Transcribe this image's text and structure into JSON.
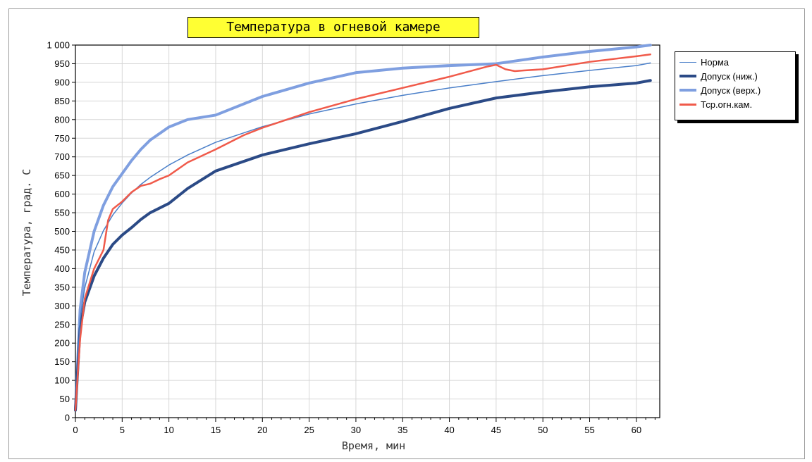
{
  "chart_data": {
    "type": "line",
    "title": "Температура в огневой камере",
    "xlabel": "Время, мин",
    "ylabel": "Температура, град. С",
    "xlim": [
      0,
      62.5
    ],
    "ylim": [
      0,
      1000
    ],
    "x_ticks": [
      0,
      5,
      10,
      15,
      20,
      25,
      30,
      35,
      40,
      45,
      50,
      55,
      60
    ],
    "y_ticks": [
      0,
      50,
      100,
      150,
      200,
      250,
      300,
      350,
      400,
      450,
      500,
      550,
      600,
      650,
      700,
      750,
      800,
      850,
      900,
      950,
      1000
    ],
    "y_tick_labels": [
      "0",
      "50",
      "100",
      "150",
      "200",
      "250",
      "300",
      "350",
      "400",
      "450",
      "500",
      "550",
      "600",
      "650",
      "700",
      "750",
      "800",
      "850",
      "900",
      "950",
      "1 000"
    ],
    "grid": true,
    "legend_position": "right",
    "series": [
      {
        "name": "Норма",
        "color": "#4a7fc9",
        "x": [
          0,
          0.5,
          1,
          2,
          3,
          4,
          5,
          6,
          7,
          8,
          10,
          12,
          15,
          20,
          25,
          30,
          35,
          40,
          45,
          50,
          55,
          60,
          61.5
        ],
        "y": [
          20,
          265,
          349,
          445,
          502,
          544,
          576,
          603,
          626,
          645,
          678,
          705,
          739,
          781,
          815,
          842,
          865,
          885,
          902,
          918,
          932,
          945,
          952
        ]
      },
      {
        "name": "Допуск (ниж.)",
        "color": "#2b4a86",
        "x": [
          0,
          0.5,
          1,
          2,
          3,
          4,
          5,
          6,
          7,
          8,
          10,
          12,
          15,
          20,
          25,
          30,
          35,
          40,
          45,
          50,
          55,
          60,
          61.5
        ],
        "y": [
          20,
          240,
          310,
          380,
          428,
          465,
          490,
          510,
          532,
          550,
          575,
          615,
          662,
          705,
          735,
          762,
          795,
          830,
          858,
          874,
          888,
          898,
          905
        ]
      },
      {
        "name": "Допуск (верх.)",
        "color": "#7f9fe0",
        "x": [
          0,
          0.5,
          1,
          2,
          3,
          4,
          5,
          6,
          7,
          8,
          10,
          12,
          15,
          20,
          25,
          30,
          35,
          40,
          45,
          50,
          55,
          60,
          61.5
        ],
        "y": [
          20,
          290,
          390,
          500,
          570,
          620,
          655,
          690,
          720,
          745,
          780,
          800,
          812,
          862,
          898,
          926,
          938,
          945,
          950,
          968,
          983,
          995,
          1000
        ]
      },
      {
        "name": "Тср.огн.кам.",
        "color": "#f05a4a",
        "x": [
          0,
          0.5,
          1,
          2,
          3,
          3.5,
          4,
          5,
          6,
          7,
          8,
          9,
          10,
          12,
          15,
          18,
          20,
          25,
          30,
          35,
          40,
          44,
          45,
          46,
          47,
          48,
          50,
          55,
          60,
          61.5
        ],
        "y": [
          20,
          210,
          320,
          400,
          450,
          530,
          560,
          580,
          605,
          622,
          628,
          640,
          650,
          685,
          720,
          758,
          778,
          820,
          855,
          885,
          915,
          942,
          947,
          935,
          930,
          932,
          935,
          955,
          970,
          975
        ]
      }
    ]
  }
}
